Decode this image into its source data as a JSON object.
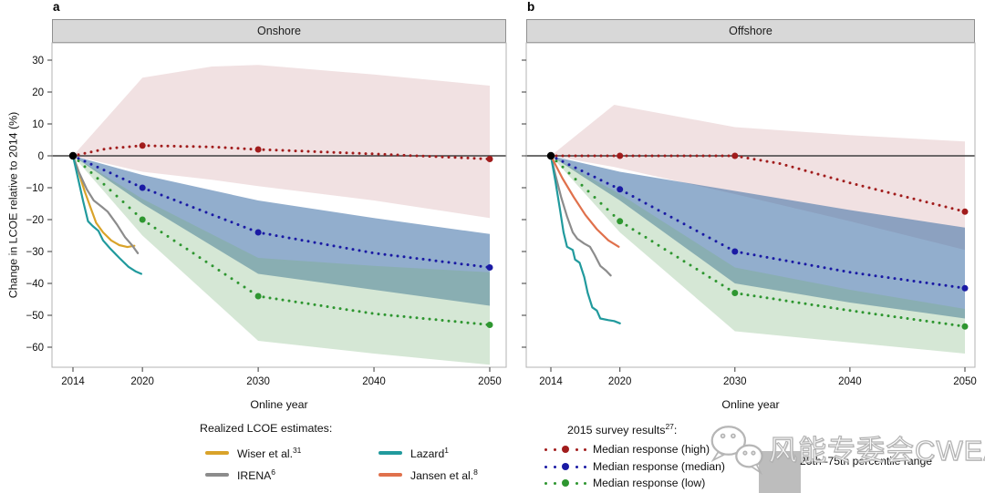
{
  "panel_a": {
    "letter": "a",
    "title": "Onshore"
  },
  "panel_b": {
    "letter": "b",
    "title": "Offshore"
  },
  "y_axis": {
    "title": "Change in LCOE relative to 2014 (%)"
  },
  "x_axis": {
    "title": "Online year"
  },
  "legend_realized": {
    "title": "Realized LCOE estimates:",
    "items": [
      {
        "label": "Wiser et al.",
        "sup": "31",
        "color": "#D9A32A"
      },
      {
        "label": "IRENA",
        "sup": "6",
        "color": "#8C8C8C"
      },
      {
        "label": "Lazard",
        "sup": "1",
        "color": "#219A9D"
      },
      {
        "label": "Jansen et al.",
        "sup": "8",
        "color": "#E0714C"
      }
    ]
  },
  "legend_survey": {
    "title": "2015 survey results",
    "title_sup": "27",
    "title_colon": ":",
    "items": [
      {
        "label": "Median response (high)",
        "color": "#A11C1C"
      },
      {
        "label": "Median response (median)",
        "color": "#1A1AA4"
      },
      {
        "label": "Median response (low)",
        "color": "#2E9630"
      }
    ],
    "range_label": "25th–75th percentile range",
    "range_color": "#BDBDBD"
  },
  "watermark": {
    "text": "风能专委会CWEA"
  },
  "chart_data": [
    {
      "type": "line",
      "panel": "a",
      "title": "Onshore",
      "xlabel": "Online year",
      "ylabel": "Change in LCOE relative to 2014 (%)",
      "xlim": [
        2013.2,
        2051.4
      ],
      "ylim": [
        -66,
        35
      ],
      "grid": false,
      "x_ticks": [
        2014,
        2020,
        2030,
        2040,
        2050
      ],
      "x_tick_labels": [
        "2014",
        "2020",
        "2030",
        "2040",
        "2050"
      ],
      "y_ticks": [
        30,
        20,
        10,
        0,
        -10,
        -20,
        -30,
        -40,
        -50,
        -60
      ],
      "y_tick_labels": [
        "30",
        "20",
        "10",
        "0",
        "−10",
        "−20",
        "−30",
        "−40",
        "−50",
        "−60"
      ],
      "origin_point": [
        2014,
        0
      ],
      "bands": [
        {
          "key": "high",
          "name": "25th–75th percentile range (high)",
          "color": "rgba(177,88,96,0.18)",
          "years": [
            2014,
            2020,
            2026,
            2030,
            2040,
            2050
          ],
          "top": [
            0,
            24.5,
            28,
            28.5,
            25.5,
            22
          ],
          "bottom": [
            0,
            -5,
            -7.5,
            -9.5,
            -14,
            -19.5
          ]
        },
        {
          "key": "median",
          "name": "25th–75th percentile range (median)",
          "color": "rgba(61,110,165,0.56)",
          "years": [
            2014,
            2020,
            2030,
            2040,
            2050
          ],
          "top": [
            0,
            -6,
            -14,
            -19.5,
            -24.5
          ],
          "bottom": [
            0,
            -15,
            -37,
            -42,
            -47
          ]
        },
        {
          "key": "low",
          "name": "25th–75th percentile range (low)",
          "color": "rgba(116,176,116,0.30)",
          "years": [
            2014,
            2020,
            2030,
            2040,
            2050
          ],
          "top": [
            0,
            -13.5,
            -32,
            -34.5,
            -36.5
          ],
          "bottom": [
            0,
            -25,
            -58,
            -62,
            -65.5
          ]
        }
      ],
      "survey_series": [
        {
          "key": "high",
          "name": "Median response (high)",
          "color": "#A11C1C",
          "anchors": [
            [
              2014,
              0
            ],
            [
              2017,
              2.3
            ],
            [
              2020,
              3.2
            ],
            [
              2026,
              2.8
            ],
            [
              2030,
              2
            ],
            [
              2040,
              0.6
            ],
            [
              2050,
              -1
            ]
          ],
          "markers": [
            2020,
            2030,
            2050
          ]
        },
        {
          "key": "median",
          "name": "Median response (median)",
          "color": "#1A1AA4",
          "anchors": [
            [
              2014,
              0
            ],
            [
              2020,
              -10
            ],
            [
              2030,
              -24
            ],
            [
              2040,
              -30.5
            ],
            [
              2050,
              -35
            ]
          ],
          "markers": [
            2020,
            2030,
            2050
          ]
        },
        {
          "key": "low",
          "name": "Median response (low)",
          "color": "#2E9630",
          "anchors": [
            [
              2014,
              0
            ],
            [
              2020,
              -20
            ],
            [
              2030,
              -44
            ],
            [
              2040,
              -49.5
            ],
            [
              2050,
              -53
            ]
          ],
          "markers": [
            2020,
            2030,
            2050
          ]
        }
      ],
      "realized_series": [
        {
          "key": "wiser",
          "name": "Wiser et al.",
          "color": "#D9A32A",
          "points": [
            [
              2014,
              0
            ],
            [
              2014.4,
              -4
            ],
            [
              2015,
              -11
            ],
            [
              2015.5,
              -16
            ],
            [
              2016,
              -21
            ],
            [
              2016.6,
              -24
            ],
            [
              2017.3,
              -26.5
            ],
            [
              2018,
              -28
            ],
            [
              2018.7,
              -28.6
            ],
            [
              2019.3,
              -28.2
            ]
          ]
        },
        {
          "key": "irena",
          "name": "IRENA",
          "color": "#8C8C8C",
          "points": [
            [
              2014,
              0
            ],
            [
              2014.5,
              -5
            ],
            [
              2015.2,
              -10.5
            ],
            [
              2015.8,
              -14
            ],
            [
              2016.5,
              -16
            ],
            [
              2017,
              -17.5
            ],
            [
              2017.8,
              -21.5
            ],
            [
              2018.5,
              -25.5
            ],
            [
              2019.1,
              -28
            ],
            [
              2019.6,
              -30.5
            ]
          ]
        },
        {
          "key": "lazard",
          "name": "Lazard",
          "color": "#219A9D",
          "points": [
            [
              2014,
              0
            ],
            [
              2014.5,
              -8
            ],
            [
              2014.9,
              -14.5
            ],
            [
              2015.3,
              -20.5
            ],
            [
              2015.7,
              -22
            ],
            [
              2016.2,
              -23.5
            ],
            [
              2016.6,
              -26.5
            ],
            [
              2017.2,
              -29
            ],
            [
              2018,
              -32
            ],
            [
              2018.8,
              -34.8
            ],
            [
              2019.4,
              -36.2
            ],
            [
              2019.9,
              -37
            ]
          ]
        }
      ]
    },
    {
      "type": "line",
      "panel": "b",
      "title": "Offshore",
      "xlabel": "Online year",
      "ylabel": "Change in LCOE relative to 2014 (%)",
      "xlim": [
        2013.2,
        2051.4
      ],
      "ylim": [
        -66,
        35
      ],
      "grid": false,
      "x_ticks": [
        2014,
        2020,
        2030,
        2040,
        2050
      ],
      "x_tick_labels": [
        "2014",
        "2020",
        "2030",
        "2040",
        "2050"
      ],
      "y_ticks": [
        30,
        20,
        10,
        0,
        -10,
        -20,
        -30,
        -40,
        -50,
        -60
      ],
      "y_tick_labels": [
        "30",
        "20",
        "10",
        "0",
        "−10",
        "−20",
        "−30",
        "−40",
        "−50",
        "−60"
      ],
      "origin_point": [
        2014,
        0
      ],
      "bands": [
        {
          "key": "high",
          "name": "25th–75th percentile range (high)",
          "color": "rgba(177,88,96,0.18)",
          "years": [
            2014,
            2019.5,
            2030,
            2040,
            2050
          ],
          "top": [
            0,
            16,
            9,
            6.5,
            4.5
          ],
          "bottom": [
            0,
            -3.5,
            -12,
            -20.5,
            -29.5
          ]
        },
        {
          "key": "median",
          "name": "25th–75th percentile range (median)",
          "color": "rgba(61,110,165,0.56)",
          "years": [
            2014,
            2020,
            2030,
            2040,
            2050
          ],
          "top": [
            0,
            -5,
            -11,
            -17,
            -22.5
          ],
          "bottom": [
            0,
            -14,
            -40,
            -46,
            -51
          ]
        },
        {
          "key": "low",
          "name": "25th–75th percentile range (low)",
          "color": "rgba(116,176,116,0.30)",
          "years": [
            2014,
            2020,
            2030,
            2040,
            2050
          ],
          "top": [
            0,
            -12,
            -35,
            -42,
            -48
          ],
          "bottom": [
            0,
            -24,
            -55,
            -58.5,
            -62
          ]
        }
      ],
      "survey_series": [
        {
          "key": "high",
          "name": "Median response (high)",
          "color": "#A11C1C",
          "anchors": [
            [
              2014,
              0
            ],
            [
              2020,
              0
            ],
            [
              2030,
              0
            ],
            [
              2034,
              -2.5
            ],
            [
              2040,
              -8.5
            ],
            [
              2050,
              -17.5
            ]
          ],
          "markers": [
            2020,
            2030,
            2050
          ]
        },
        {
          "key": "median",
          "name": "Median response (median)",
          "color": "#1A1AA4",
          "anchors": [
            [
              2014,
              0
            ],
            [
              2020,
              -10.5
            ],
            [
              2030,
              -30
            ],
            [
              2040,
              -36.5
            ],
            [
              2050,
              -41.5
            ]
          ],
          "markers": [
            2020,
            2030,
            2050
          ]
        },
        {
          "key": "low",
          "name": "Median response (low)",
          "color": "#2E9630",
          "anchors": [
            [
              2014,
              0
            ],
            [
              2020,
              -20.5
            ],
            [
              2030,
              -43
            ],
            [
              2040,
              -48.5
            ],
            [
              2050,
              -53.5
            ]
          ],
          "markers": [
            2020,
            2030,
            2050
          ]
        }
      ],
      "realized_series": [
        {
          "key": "irena",
          "name": "IRENA",
          "color": "#8C8C8C",
          "points": [
            [
              2014,
              0
            ],
            [
              2014.4,
              -6
            ],
            [
              2014.9,
              -13
            ],
            [
              2015.4,
              -19
            ],
            [
              2015.9,
              -24
            ],
            [
              2016.3,
              -26
            ],
            [
              2016.9,
              -27.5
            ],
            [
              2017.4,
              -28.5
            ],
            [
              2017.8,
              -31
            ],
            [
              2018.3,
              -34.5
            ],
            [
              2018.8,
              -36
            ],
            [
              2019.2,
              -37.5
            ]
          ]
        },
        {
          "key": "lazard",
          "name": "Lazard",
          "color": "#219A9D",
          "points": [
            [
              2014,
              0
            ],
            [
              2014.4,
              -8
            ],
            [
              2014.8,
              -17
            ],
            [
              2015.1,
              -24
            ],
            [
              2015.4,
              -28.5
            ],
            [
              2015.9,
              -29.5
            ],
            [
              2016.1,
              -32.5
            ],
            [
              2016.5,
              -33.5
            ],
            [
              2016.9,
              -38
            ],
            [
              2017.2,
              -43
            ],
            [
              2017.6,
              -47.5
            ],
            [
              2018,
              -48.5
            ],
            [
              2018.3,
              -51
            ],
            [
              2019,
              -51.5
            ],
            [
              2019.5,
              -51.8
            ],
            [
              2020,
              -52.5
            ]
          ]
        },
        {
          "key": "jansen",
          "name": "Jansen et al.",
          "color": "#E0714C",
          "points": [
            [
              2014,
              0
            ],
            [
              2015,
              -7
            ],
            [
              2016,
              -13
            ],
            [
              2017,
              -18.5
            ],
            [
              2018,
              -23
            ],
            [
              2019,
              -26.5
            ],
            [
              2019.9,
              -28.5
            ]
          ]
        }
      ]
    }
  ]
}
